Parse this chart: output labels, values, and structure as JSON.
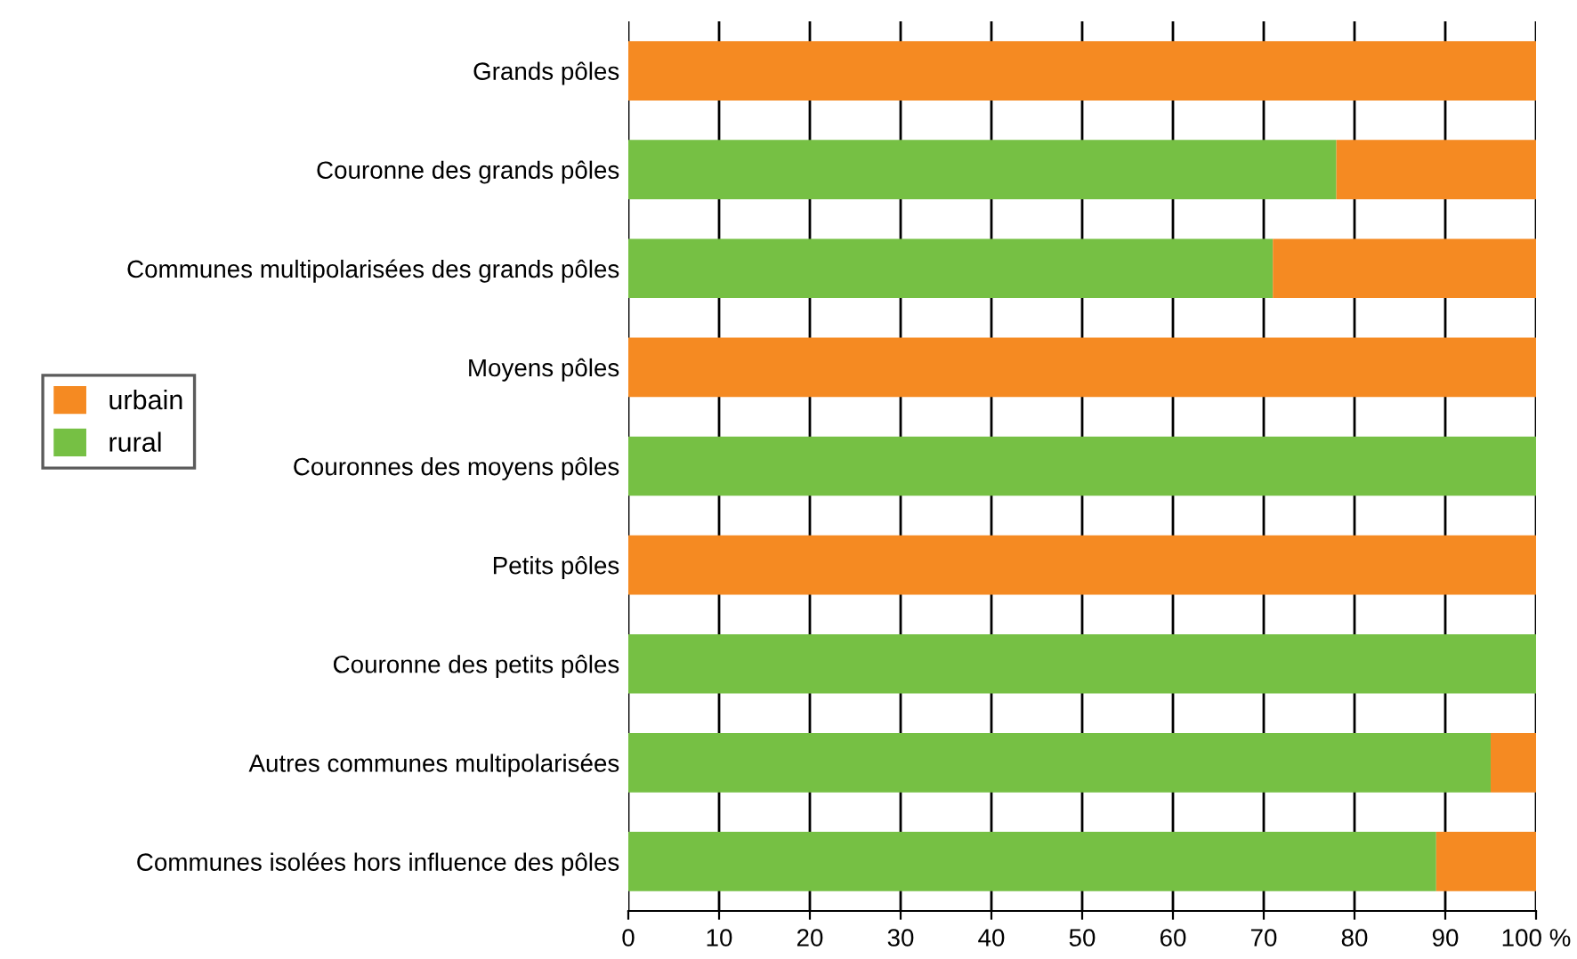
{
  "chart_data": {
    "type": "bar",
    "orientation": "horizontal",
    "stacked": true,
    "categories": [
      "Grands pôles",
      "Couronne des grands pôles",
      "Communes multipolarisées des grands pôles",
      "Moyens pôles",
      "Couronnes des moyens pôles",
      "Petits pôles",
      "Couronne des petits pôles",
      "Autres communes multipolarisées",
      "Communes isolées hors influence des pôles"
    ],
    "series": [
      {
        "name": "rural",
        "color": "#76c044",
        "values": [
          0,
          78,
          71,
          0,
          100,
          0,
          100,
          95,
          89
        ]
      },
      {
        "name": "urbain",
        "color": "#f58a22",
        "values": [
          100,
          22,
          29,
          100,
          0,
          100,
          0,
          5,
          11
        ]
      }
    ],
    "xlim": [
      0,
      100
    ],
    "xticks": [
      0,
      10,
      20,
      30,
      40,
      50,
      60,
      70,
      80,
      90,
      {
        "value": 100,
        "label": "100 %"
      }
    ],
    "grid": "x",
    "legend": "left"
  }
}
